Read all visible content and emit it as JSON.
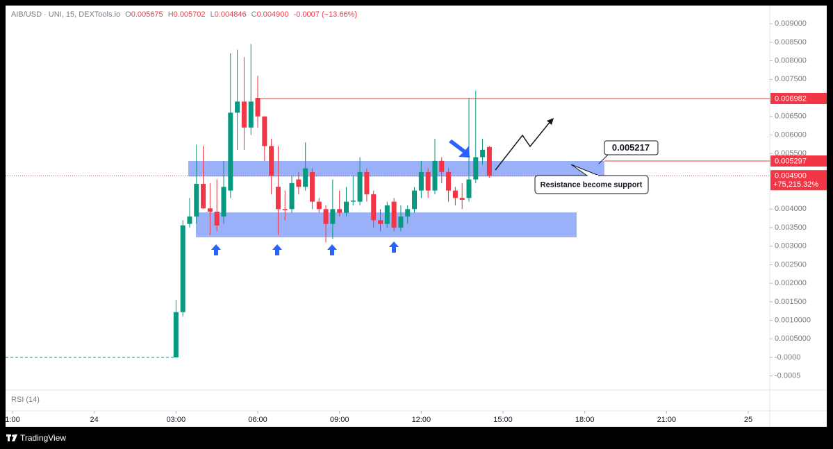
{
  "header": {
    "symbol": "AIB/USD · UNI, 15, DEXTools.io",
    "ohlc": [
      {
        "label": "O",
        "value": "0.005675"
      },
      {
        "label": "H",
        "value": "0.005702"
      },
      {
        "label": "L",
        "value": "0.004846"
      },
      {
        "label": "C",
        "value": "0.004900"
      }
    ],
    "change": "-0.0007 (−13.66%)"
  },
  "chart_data": {
    "type": "candlestick",
    "up_color": "#089981",
    "down_color": "#f23645",
    "grid": false,
    "x": [
      27,
      27.25,
      27.5,
      27.75,
      28,
      28.25,
      28.5,
      28.75,
      29,
      29.25,
      29.5,
      29.75,
      30,
      30.25,
      30.5,
      30.75,
      31,
      31.25,
      31.5,
      31.75,
      32,
      32.25,
      32.5,
      32.75,
      33,
      33.25,
      33.5,
      33.75,
      34,
      34.25,
      34.5,
      34.75,
      35,
      35.25,
      35.5,
      35.75,
      36,
      36.25,
      36.5,
      36.75,
      37,
      37.25,
      37.5,
      37.75,
      38,
      38.25,
      38.5
    ],
    "open": [
      0,
      0.00122,
      0.0036,
      0.0038,
      0.00468,
      0.00402,
      0.00393,
      0.0038,
      0.0045,
      0.0066,
      0.0069,
      0.0062,
      0.007,
      0.0065,
      0.0057,
      0.0046,
      0.004,
      0.004,
      0.0048,
      0.0046,
      0.005,
      0.0042,
      0.004,
      0.0036,
      0.004,
      0.0039,
      0.0042,
      0.0042,
      0.005,
      0.0044,
      0.0037,
      0.0036,
      0.0042,
      0.0035,
      0.0038,
      0.004,
      0.0045,
      0.005,
      0.0045,
      0.0053,
      0.005,
      0.0045,
      0.0043,
      0.0043,
      0.0048,
      0.0054,
      0.005675
    ],
    "high": [
      0.00155,
      0.0037,
      0.0043,
      0.00574,
      0.0057,
      0.0047,
      0.0048,
      0.0053,
      0.0082,
      0.0083,
      0.0081,
      0.00845,
      0.0076,
      0.0064,
      0.0059,
      0.0057,
      0.0045,
      0.0049,
      0.005,
      0.0058,
      0.0051,
      0.0043,
      0.0041,
      0.0048,
      0.0045,
      0.0046,
      0.0049,
      0.0054,
      0.0051,
      0.0045,
      0.004,
      0.0042,
      0.0043,
      0.0041,
      0.0041,
      0.0046,
      0.0053,
      0.0051,
      0.0059,
      0.0054,
      0.0051,
      0.0046,
      0.0047,
      0.007,
      0.0072,
      0.0059,
      0.005702
    ],
    "low": [
      0,
      0.0011,
      0.0035,
      0.0036,
      0.004,
      0.0033,
      0.0034,
      0.0036,
      0.0043,
      0.0056,
      0.0056,
      0.006,
      0.0062,
      0.0053,
      0.0044,
      0.0033,
      0.0037,
      0.0039,
      0.0044,
      0.0045,
      0.004,
      0.0039,
      0.0031,
      0.0032,
      0.0038,
      0.0038,
      0.0041,
      0.0041,
      0.0042,
      0.0035,
      0.0034,
      0.0035,
      0.0034,
      0.0034,
      0.0036,
      0.0039,
      0.0043,
      0.0043,
      0.0044,
      0.0047,
      0.0042,
      0.0041,
      0.004,
      0.0042,
      0.0047,
      0.0052,
      0.004846
    ],
    "close": [
      0.00122,
      0.00356,
      0.0038,
      0.00468,
      0.00402,
      0.00393,
      0.00356,
      0.0046,
      0.0066,
      0.0069,
      0.0062,
      0.0069,
      0.0065,
      0.0057,
      0.0049,
      0.004,
      0.00397,
      0.0047,
      0.0046,
      0.0051,
      0.0042,
      0.004,
      0.0036,
      0.004,
      0.0039,
      0.0042,
      0.00423,
      0.005,
      0.0044,
      0.0037,
      0.0036,
      0.0041,
      0.0035,
      0.0038,
      0.004,
      0.0045,
      0.005,
      0.0045,
      0.0053,
      0.005,
      0.0045,
      0.0043,
      0.00425,
      0.0048,
      0.0054,
      0.0056,
      0.0049
    ],
    "prior_line": {
      "x": [
        20.745,
        27
      ],
      "values": [
        0,
        0
      ],
      "color": "#089981"
    },
    "xlim": [
      20.745,
      48.79
    ],
    "xticks": [
      {
        "value": 21,
        "label": "1:00"
      },
      24,
      {
        "value": 27,
        "label": "03:00"
      },
      {
        "value": 30,
        "label": "06:00"
      },
      {
        "value": 33,
        "label": "09:00"
      },
      {
        "value": 36,
        "label": "12:00"
      },
      {
        "value": 39,
        "label": "15:00"
      },
      {
        "value": 42,
        "label": "18:00"
      },
      {
        "value": 45,
        "label": "21:00"
      },
      {
        "value": 48,
        "label": "25"
      }
    ],
    "ylim": [
      -0.00088,
      0.00949
    ],
    "yticks": [
      {
        "value": 0.009,
        "label": "0.009000"
      },
      {
        "value": 0.0085,
        "label": "0.008500"
      },
      {
        "value": 0.008,
        "label": "0.008000"
      },
      {
        "value": 0.0075,
        "label": "0.007500"
      },
      {
        "value": 0.0065,
        "label": "0.006500"
      },
      {
        "value": 0.006,
        "label": "0.006000"
      },
      {
        "value": 0.0055,
        "label": "0.005500"
      },
      {
        "value": 0.004,
        "label": "0.004000"
      },
      {
        "value": 0.0035,
        "label": "0.003500"
      },
      {
        "value": 0.003,
        "label": "0.003000"
      },
      {
        "value": 0.0025,
        "label": "0.002500"
      },
      {
        "value": 0.002,
        "label": "0.002000"
      },
      {
        "value": 0.0015,
        "label": "0.001500"
      },
      {
        "value": 0.001,
        "label": "0.0010000"
      },
      {
        "value": 0.0005,
        "label": "0.0005000"
      },
      {
        "value": 0,
        "label": "-0.0000"
      },
      {
        "value": -0.0005,
        "label": "-0.0005"
      }
    ],
    "levels": [
      {
        "value": 0.006982,
        "x_from": 29.97,
        "color": "#f23645"
      },
      {
        "value": 0.005297,
        "x_from": 42.72,
        "color": "#f23645"
      }
    ],
    "last_price": {
      "value": 0.0049,
      "label": "0.004900",
      "change": "+75,215.32%",
      "color": "#f23645"
    },
    "zones": [
      {
        "top": 0.005297,
        "bottom": 0.00488,
        "x0": 27.45,
        "x1": 42.72,
        "color": "#6f8ff5"
      },
      {
        "top": 0.00391,
        "bottom": 0.00324,
        "x0": 27.73,
        "x1": 41.7,
        "color": "#6f8ff5"
      }
    ],
    "annotations": [
      "0.005217",
      "Resistance become support"
    ],
    "indicator": "RSI (14)"
  },
  "footer": {
    "brand": "TradingView"
  }
}
